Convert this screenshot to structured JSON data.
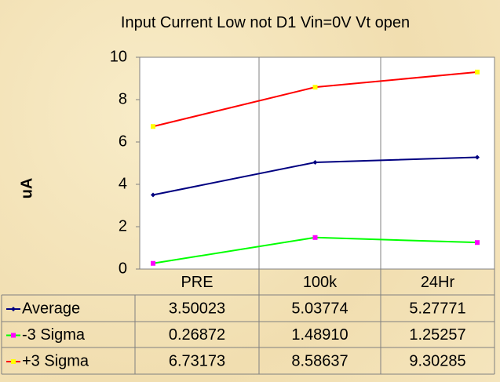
{
  "chart_data": {
    "type": "line",
    "title": "Input Current Low not D1 Vin=0V Vt open",
    "y_label": "uA",
    "categories": [
      "PRE",
      "100k",
      "24Hr"
    ],
    "ylim": [
      0,
      10
    ],
    "yticks": [
      0,
      2,
      4,
      6,
      8,
      10
    ],
    "series": [
      {
        "name": "Average",
        "color": "#000080",
        "marker_color": "#000080",
        "marker": "diamond",
        "values": [
          3.50023,
          5.03774,
          5.27771
        ],
        "value_labels": [
          "3.50023",
          "5.03774",
          "5.27771"
        ]
      },
      {
        "name": "-3 Sigma",
        "color": "#00ff00",
        "marker_color": "#ff00ff",
        "marker": "square",
        "values": [
          0.26872,
          1.4891,
          1.25257
        ],
        "value_labels": [
          "0.26872",
          "1.48910",
          "1.25257"
        ]
      },
      {
        "name": "+3 Sigma",
        "color": "#ff0000",
        "marker_color": "#ffff00",
        "marker": "square",
        "values": [
          6.73173,
          8.58637,
          9.30285
        ],
        "value_labels": [
          "6.73173",
          "8.58637",
          "9.30285"
        ]
      }
    ]
  }
}
